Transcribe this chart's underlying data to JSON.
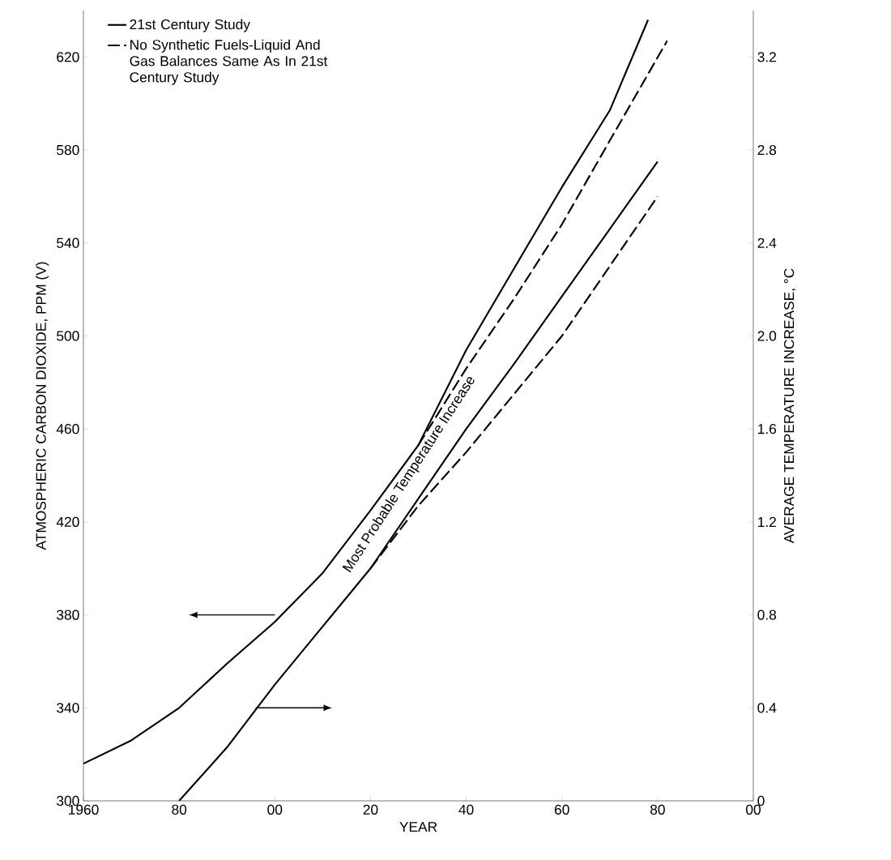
{
  "chart_data": {
    "type": "line",
    "xlabel": "YEAR",
    "ylabel": "ATMOSPHERIC CARBON DIOXIDE, PPM (V)",
    "y2label": "AVERAGE TEMPERATURE INCREASE, °C",
    "annotations": [
      "Most Probable Temperature Increase"
    ],
    "xlim": [
      1960,
      2100
    ],
    "xticks": [
      1960,
      {
        "value": 1980,
        "label": "80"
      },
      {
        "value": 2000,
        "label": "00"
      },
      {
        "value": 2020,
        "label": "20"
      },
      {
        "value": 2040,
        "label": "40"
      },
      {
        "value": 2060,
        "label": "60"
      },
      {
        "value": 2080,
        "label": "80"
      },
      {
        "value": 2100,
        "label": "00"
      }
    ],
    "ylim": [
      300,
      640
    ],
    "yticks": [
      300,
      340,
      380,
      420,
      460,
      500,
      540,
      580,
      620
    ],
    "y2lim": [
      0,
      3.4
    ],
    "y2ticks": [
      0,
      0.4,
      0.8,
      1.2,
      1.6,
      {
        "value": 2,
        "label": "2.0"
      },
      2.4,
      2.8,
      3.2
    ],
    "legend": "top left",
    "grid": false,
    "marker": "none",
    "series": [
      {
        "name": "21st Century Study",
        "color": "#000000",
        "line_style": "solid",
        "x": [
          1960,
          1970,
          1980,
          1990,
          2000,
          2010,
          2020,
          2030,
          2040,
          2050,
          2060,
          2070,
          2078
        ],
        "values": [
          316,
          326,
          340,
          359,
          377,
          398,
          425,
          453,
          494,
          529,
          564,
          597,
          636
        ]
      },
      {
        "name": "No Synthetic Fuels-Liquid And Gas Balances Same As In 21st Century Study",
        "color": "#000000",
        "line_style": "dashed",
        "x": [
          2030,
          2040,
          2050,
          2060,
          2070,
          2082
        ],
        "values": [
          453,
          486,
          516,
          548,
          584,
          627
        ]
      },
      {
        "color": "#000000",
        "line_style": "solid",
        "axis": "y2",
        "x": [
          1980,
          1990,
          2000,
          2010,
          2020,
          2030,
          2040,
          2050,
          2060,
          2070,
          2080
        ],
        "values": [
          0,
          0.23,
          0.5,
          0.75,
          1.0,
          1.3,
          1.6,
          1.88,
          2.17,
          2.46,
          2.75
        ]
      },
      {
        "color": "#000000",
        "line_style": "dashed",
        "axis": "y2",
        "x": [
          2020,
          2030,
          2040,
          2050,
          2060,
          2070,
          2080
        ],
        "values": [
          1.0,
          1.27,
          1.5,
          1.75,
          2.0,
          2.3,
          2.6
        ]
      }
    ]
  }
}
